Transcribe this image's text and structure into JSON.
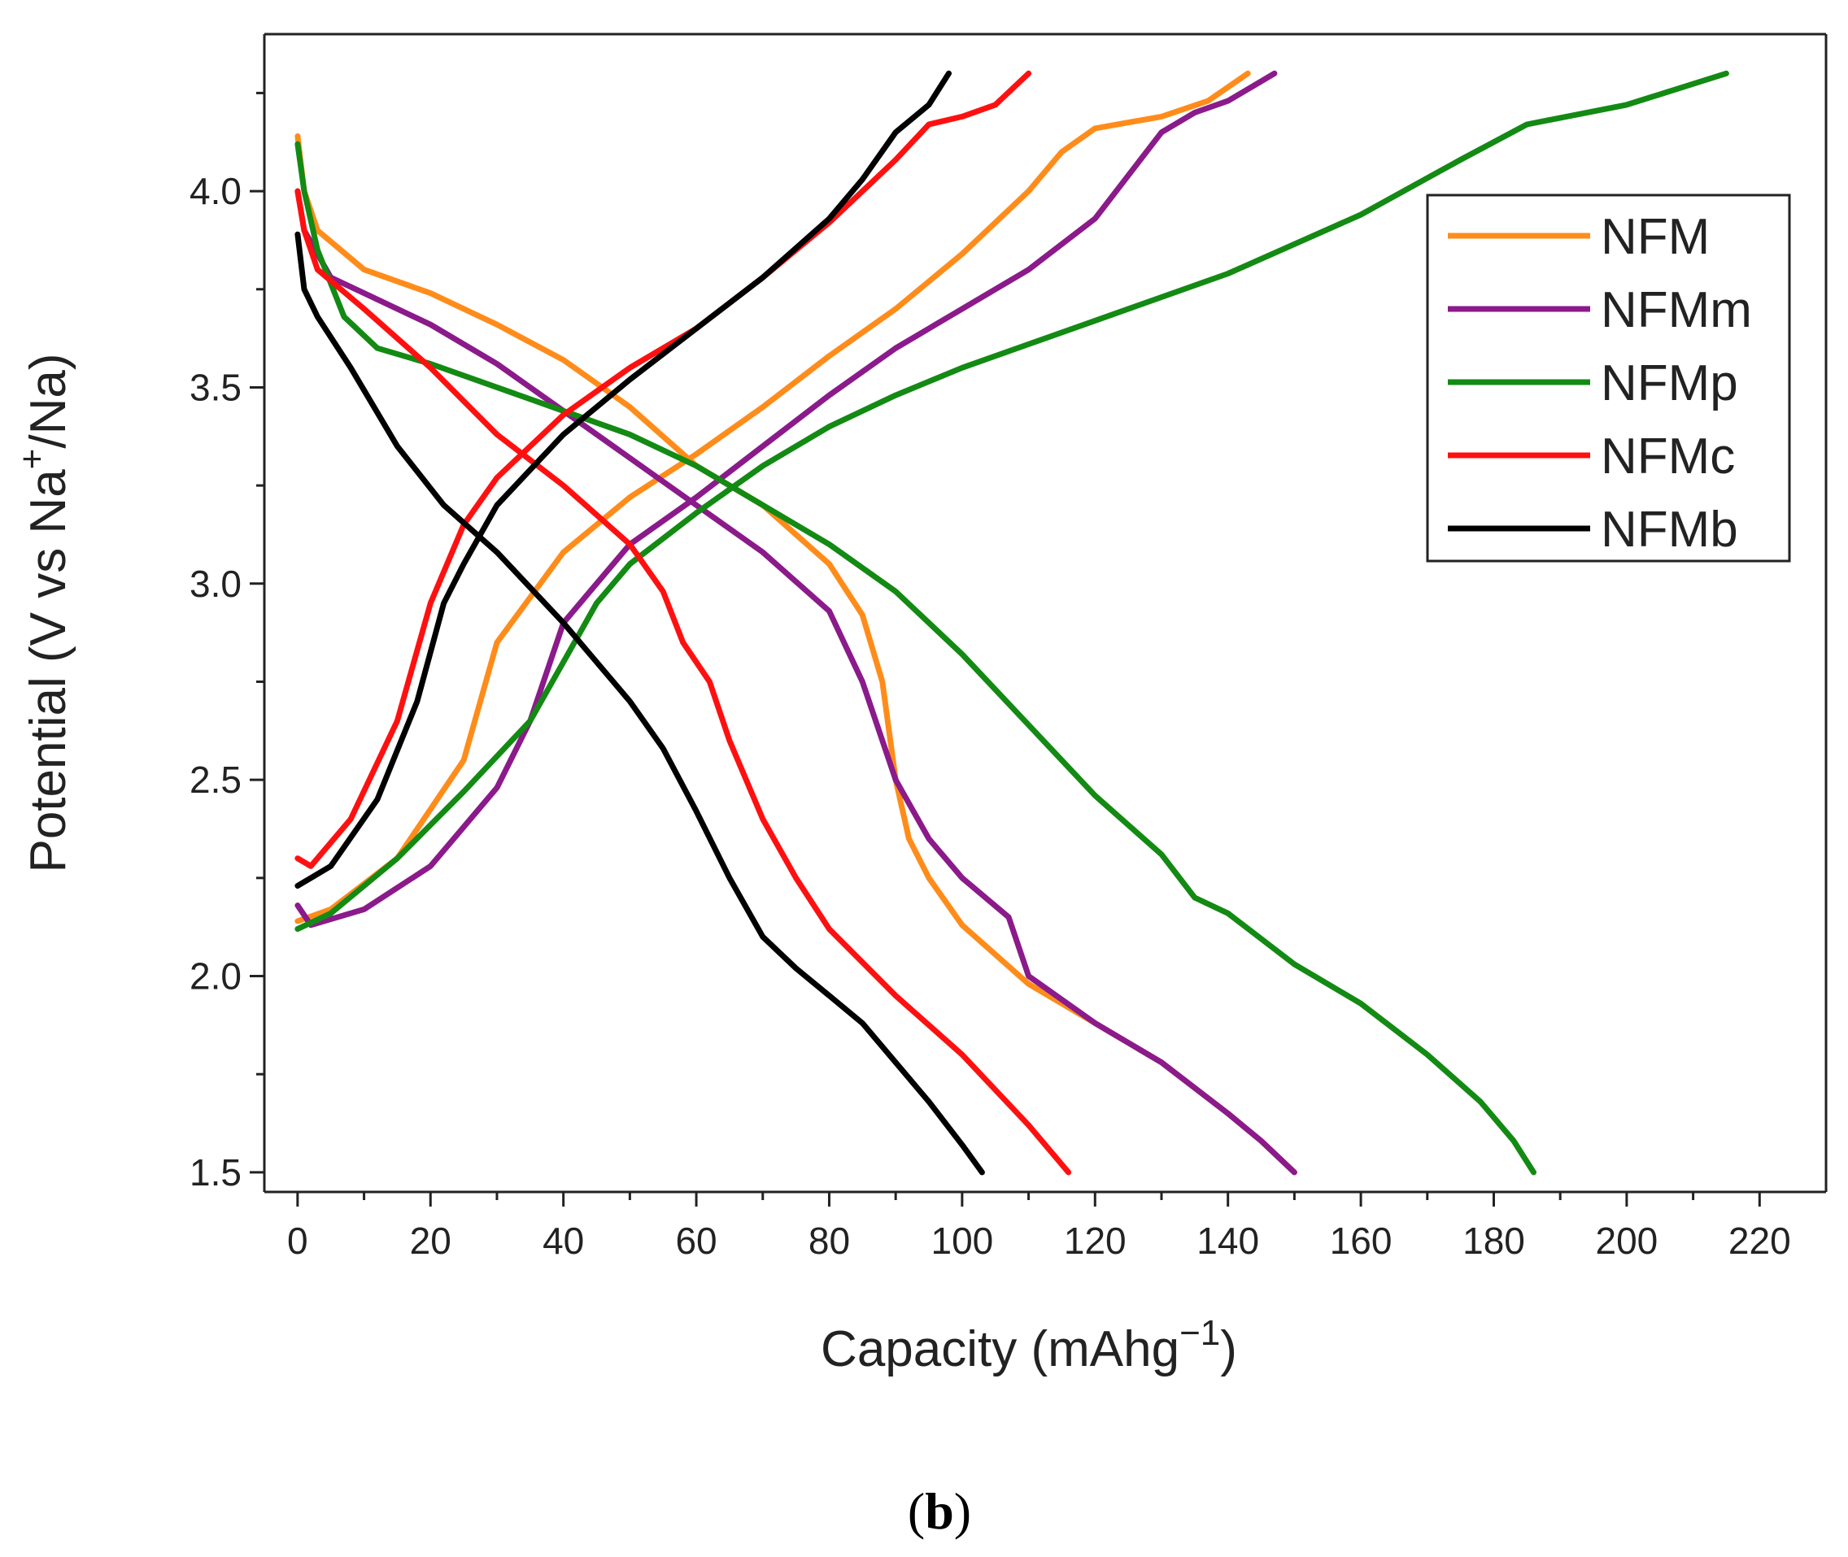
{
  "chart_data": {
    "type": "line",
    "title": "",
    "xlabel": "Capacity (mAhg",
    "xlabel_sup": "−1",
    "xlabel_close": ")",
    "ylabel": "Potential (V vs Na",
    "ylabel_sup": "+",
    "ylabel_close": "/Na)",
    "xlim": [
      -5,
      230
    ],
    "ylim": [
      1.45,
      4.4
    ],
    "xticks": [
      0,
      20,
      40,
      60,
      80,
      100,
      120,
      140,
      160,
      180,
      200,
      220
    ],
    "xtick_labels": [
      "0",
      "20",
      "40",
      "60",
      "80",
      "100",
      "120",
      "140",
      "160",
      "180",
      "200",
      "220"
    ],
    "yticks": [
      1.5,
      2.0,
      2.5,
      3.0,
      3.5,
      4.0
    ],
    "ytick_labels": [
      "1.5",
      "2.0",
      "2.5",
      "3.0",
      "3.5",
      "4.0"
    ],
    "legend_position": "top-right",
    "series": [
      {
        "name": "NFM",
        "color": "#FF8C1A",
        "charge": [
          [
            0,
            2.14
          ],
          [
            5,
            2.17
          ],
          [
            15,
            2.3
          ],
          [
            25,
            2.55
          ],
          [
            30,
            2.85
          ],
          [
            40,
            3.08
          ],
          [
            50,
            3.22
          ],
          [
            60,
            3.33
          ],
          [
            70,
            3.45
          ],
          [
            80,
            3.58
          ],
          [
            90,
            3.7
          ],
          [
            100,
            3.84
          ],
          [
            110,
            4.0
          ],
          [
            115,
            4.1
          ],
          [
            120,
            4.16
          ],
          [
            130,
            4.19
          ],
          [
            137,
            4.23
          ],
          [
            143,
            4.3
          ]
        ],
        "discharge": [
          [
            0,
            4.14
          ],
          [
            1,
            4.0
          ],
          [
            3,
            3.9
          ],
          [
            10,
            3.8
          ],
          [
            20,
            3.74
          ],
          [
            30,
            3.66
          ],
          [
            40,
            3.57
          ],
          [
            50,
            3.45
          ],
          [
            60,
            3.3
          ],
          [
            70,
            3.2
          ],
          [
            80,
            3.05
          ],
          [
            85,
            2.92
          ],
          [
            88,
            2.75
          ],
          [
            90,
            2.5
          ],
          [
            92,
            2.35
          ],
          [
            95,
            2.25
          ],
          [
            100,
            2.13
          ],
          [
            110,
            1.98
          ],
          [
            120,
            1.88
          ],
          [
            130,
            1.78
          ],
          [
            140,
            1.65
          ],
          [
            145,
            1.58
          ],
          [
            150,
            1.5
          ]
        ]
      },
      {
        "name": "NFMm",
        "color": "#8B1A8B",
        "charge": [
          [
            0,
            2.18
          ],
          [
            2,
            2.13
          ],
          [
            10,
            2.17
          ],
          [
            20,
            2.28
          ],
          [
            30,
            2.48
          ],
          [
            35,
            2.65
          ],
          [
            40,
            2.9
          ],
          [
            45,
            3.0
          ],
          [
            50,
            3.1
          ],
          [
            60,
            3.22
          ],
          [
            70,
            3.35
          ],
          [
            80,
            3.48
          ],
          [
            90,
            3.6
          ],
          [
            100,
            3.7
          ],
          [
            110,
            3.8
          ],
          [
            120,
            3.93
          ],
          [
            130,
            4.15
          ],
          [
            135,
            4.2
          ],
          [
            140,
            4.23
          ],
          [
            147,
            4.3
          ]
        ],
        "discharge": [
          [
            0,
            4.0
          ],
          [
            1,
            3.9
          ],
          [
            5,
            3.78
          ],
          [
            10,
            3.74
          ],
          [
            20,
            3.66
          ],
          [
            30,
            3.56
          ],
          [
            40,
            3.44
          ],
          [
            50,
            3.32
          ],
          [
            60,
            3.2
          ],
          [
            70,
            3.08
          ],
          [
            80,
            2.93
          ],
          [
            85,
            2.75
          ],
          [
            90,
            2.5
          ],
          [
            95,
            2.35
          ],
          [
            100,
            2.25
          ],
          [
            107,
            2.15
          ],
          [
            110,
            2.0
          ],
          [
            120,
            1.88
          ],
          [
            130,
            1.78
          ],
          [
            140,
            1.65
          ],
          [
            145,
            1.58
          ],
          [
            150,
            1.5
          ]
        ]
      },
      {
        "name": "NFMp",
        "color": "#138A13",
        "charge": [
          [
            0,
            2.12
          ],
          [
            5,
            2.16
          ],
          [
            15,
            2.3
          ],
          [
            25,
            2.47
          ],
          [
            35,
            2.65
          ],
          [
            45,
            2.95
          ],
          [
            50,
            3.05
          ],
          [
            60,
            3.18
          ],
          [
            70,
            3.3
          ],
          [
            80,
            3.4
          ],
          [
            90,
            3.48
          ],
          [
            100,
            3.55
          ],
          [
            120,
            3.67
          ],
          [
            140,
            3.79
          ],
          [
            160,
            3.94
          ],
          [
            175,
            4.08
          ],
          [
            185,
            4.17
          ],
          [
            200,
            4.22
          ],
          [
            215,
            4.3
          ]
        ],
        "discharge": [
          [
            0,
            4.12
          ],
          [
            1,
            4.0
          ],
          [
            3,
            3.85
          ],
          [
            7,
            3.68
          ],
          [
            12,
            3.6
          ],
          [
            20,
            3.56
          ],
          [
            30,
            3.5
          ],
          [
            40,
            3.44
          ],
          [
            50,
            3.38
          ],
          [
            60,
            3.3
          ],
          [
            70,
            3.2
          ],
          [
            80,
            3.1
          ],
          [
            90,
            2.98
          ],
          [
            100,
            2.82
          ],
          [
            110,
            2.64
          ],
          [
            120,
            2.46
          ],
          [
            130,
            2.31
          ],
          [
            135,
            2.2
          ],
          [
            140,
            2.16
          ],
          [
            150,
            2.03
          ],
          [
            160,
            1.93
          ],
          [
            170,
            1.8
          ],
          [
            178,
            1.68
          ],
          [
            183,
            1.58
          ],
          [
            186,
            1.5
          ]
        ]
      },
      {
        "name": "NFMc",
        "color": "#FF1010",
        "charge": [
          [
            0,
            2.3
          ],
          [
            2,
            2.28
          ],
          [
            8,
            2.4
          ],
          [
            15,
            2.65
          ],
          [
            20,
            2.95
          ],
          [
            25,
            3.15
          ],
          [
            30,
            3.27
          ],
          [
            40,
            3.43
          ],
          [
            50,
            3.55
          ],
          [
            60,
            3.65
          ],
          [
            70,
            3.78
          ],
          [
            80,
            3.92
          ],
          [
            90,
            4.08
          ],
          [
            95,
            4.17
          ],
          [
            100,
            4.19
          ],
          [
            105,
            4.22
          ],
          [
            110,
            4.3
          ]
        ],
        "discharge": [
          [
            0,
            4.0
          ],
          [
            1,
            3.9
          ],
          [
            3,
            3.8
          ],
          [
            10,
            3.7
          ],
          [
            20,
            3.55
          ],
          [
            30,
            3.38
          ],
          [
            40,
            3.25
          ],
          [
            50,
            3.1
          ],
          [
            55,
            2.98
          ],
          [
            58,
            2.85
          ],
          [
            62,
            2.75
          ],
          [
            65,
            2.6
          ],
          [
            70,
            2.4
          ],
          [
            75,
            2.25
          ],
          [
            80,
            2.12
          ],
          [
            90,
            1.95
          ],
          [
            100,
            1.8
          ],
          [
            110,
            1.62
          ],
          [
            116,
            1.5
          ]
        ]
      },
      {
        "name": "NFMb",
        "color": "#000000",
        "charge": [
          [
            0,
            2.23
          ],
          [
            5,
            2.28
          ],
          [
            12,
            2.45
          ],
          [
            18,
            2.7
          ],
          [
            22,
            2.95
          ],
          [
            25,
            3.05
          ],
          [
            30,
            3.2
          ],
          [
            40,
            3.38
          ],
          [
            50,
            3.52
          ],
          [
            60,
            3.65
          ],
          [
            70,
            3.78
          ],
          [
            80,
            3.93
          ],
          [
            85,
            4.03
          ],
          [
            90,
            4.15
          ],
          [
            95,
            4.22
          ],
          [
            98,
            4.3
          ]
        ],
        "discharge": [
          [
            0,
            3.89
          ],
          [
            1,
            3.75
          ],
          [
            3,
            3.68
          ],
          [
            8,
            3.55
          ],
          [
            15,
            3.35
          ],
          [
            22,
            3.2
          ],
          [
            30,
            3.08
          ],
          [
            40,
            2.9
          ],
          [
            50,
            2.7
          ],
          [
            55,
            2.58
          ],
          [
            60,
            2.42
          ],
          [
            65,
            2.25
          ],
          [
            70,
            2.1
          ],
          [
            75,
            2.02
          ],
          [
            80,
            1.95
          ],
          [
            85,
            1.88
          ],
          [
            90,
            1.78
          ],
          [
            95,
            1.68
          ],
          [
            100,
            1.57
          ],
          [
            103,
            1.5
          ]
        ]
      }
    ]
  },
  "caption": {
    "text": "b",
    "open": "(",
    "close": ")"
  }
}
